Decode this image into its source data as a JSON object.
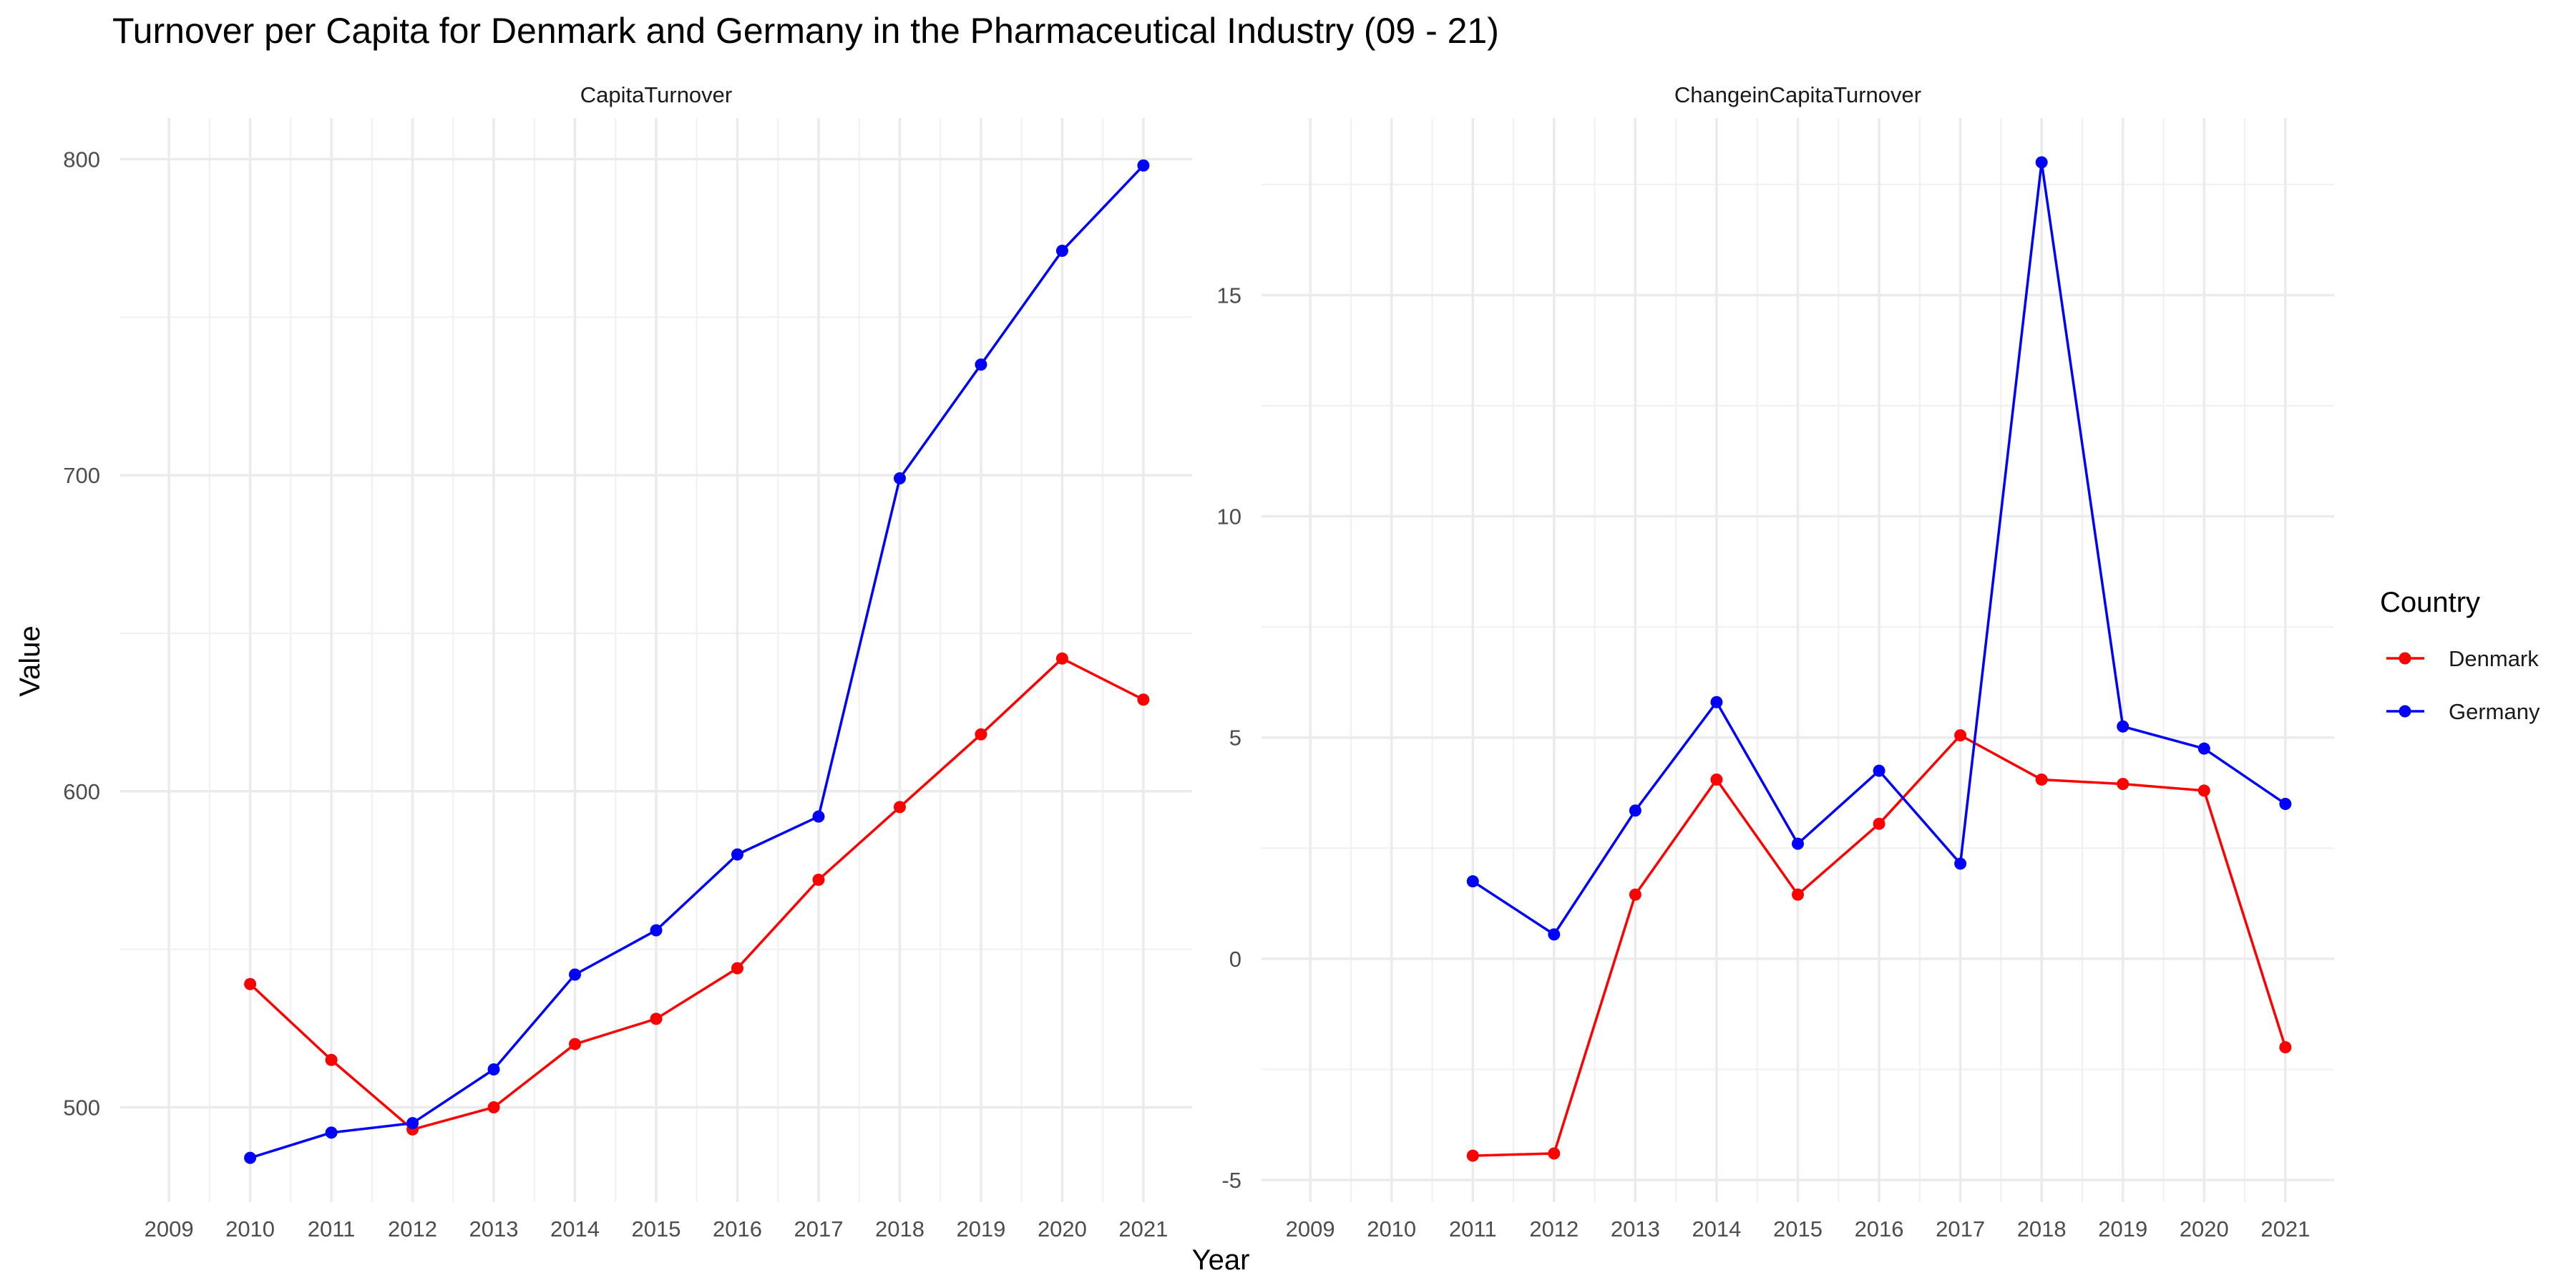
{
  "title": "Turnover per Capita for Denmark and Germany in the Pharmaceutical Industry (09 - 21)",
  "xlabel": "Year",
  "ylabel": "Value",
  "legend": {
    "title": "Country",
    "placement": "right",
    "entries": [
      {
        "name": "Denmark",
        "color": "#ff0000"
      },
      {
        "name": "Germany",
        "color": "#0000ff"
      }
    ]
  },
  "chart_data": [
    {
      "type": "line",
      "panel": "CapitaTurnover",
      "x_categories": [
        "2009",
        "2010",
        "2011",
        "2012",
        "2013",
        "2014",
        "2015",
        "2016",
        "2017",
        "2018",
        "2019",
        "2020",
        "2021"
      ],
      "ylim": [
        470,
        813
      ],
      "y_ticks": [
        500,
        600,
        700,
        800
      ],
      "grid": true,
      "series": [
        {
          "name": "Denmark",
          "color": "#ff0000",
          "x": [
            "2010",
            "2011",
            "2012",
            "2013",
            "2014",
            "2015",
            "2016",
            "2017",
            "2018",
            "2019",
            "2020",
            "2021"
          ],
          "values": [
            539,
            515,
            493,
            500,
            520,
            528,
            544,
            572,
            595,
            618,
            642,
            629
          ]
        },
        {
          "name": "Germany",
          "color": "#0000ff",
          "x": [
            "2010",
            "2011",
            "2012",
            "2013",
            "2014",
            "2015",
            "2016",
            "2017",
            "2018",
            "2019",
            "2020",
            "2021"
          ],
          "values": [
            484,
            492,
            495,
            512,
            542,
            556,
            580,
            592,
            699,
            735,
            771,
            798
          ]
        }
      ]
    },
    {
      "type": "line",
      "panel": "ChangeinCapitaTurnover",
      "x_categories": [
        "2009",
        "2010",
        "2011",
        "2012",
        "2013",
        "2014",
        "2015",
        "2016",
        "2017",
        "2018",
        "2019",
        "2020",
        "2021"
      ],
      "ylim": [
        -5.5,
        19
      ],
      "y_ticks": [
        -5,
        0,
        5,
        10,
        15
      ],
      "grid": true,
      "series": [
        {
          "name": "Denmark",
          "color": "#ff0000",
          "x": [
            "2011",
            "2012",
            "2013",
            "2014",
            "2015",
            "2016",
            "2017",
            "2018",
            "2019",
            "2020",
            "2021"
          ],
          "values": [
            -4.45,
            -4.4,
            1.45,
            4.05,
            1.45,
            3.05,
            5.05,
            4.05,
            3.95,
            3.8,
            -2.0
          ]
        },
        {
          "name": "Germany",
          "color": "#0000ff",
          "x": [
            "2011",
            "2012",
            "2013",
            "2014",
            "2015",
            "2016",
            "2017",
            "2018",
            "2019",
            "2020",
            "2021"
          ],
          "values": [
            1.75,
            0.55,
            3.35,
            5.8,
            2.6,
            4.25,
            2.15,
            18.0,
            5.25,
            4.75,
            3.5
          ]
        }
      ]
    }
  ]
}
